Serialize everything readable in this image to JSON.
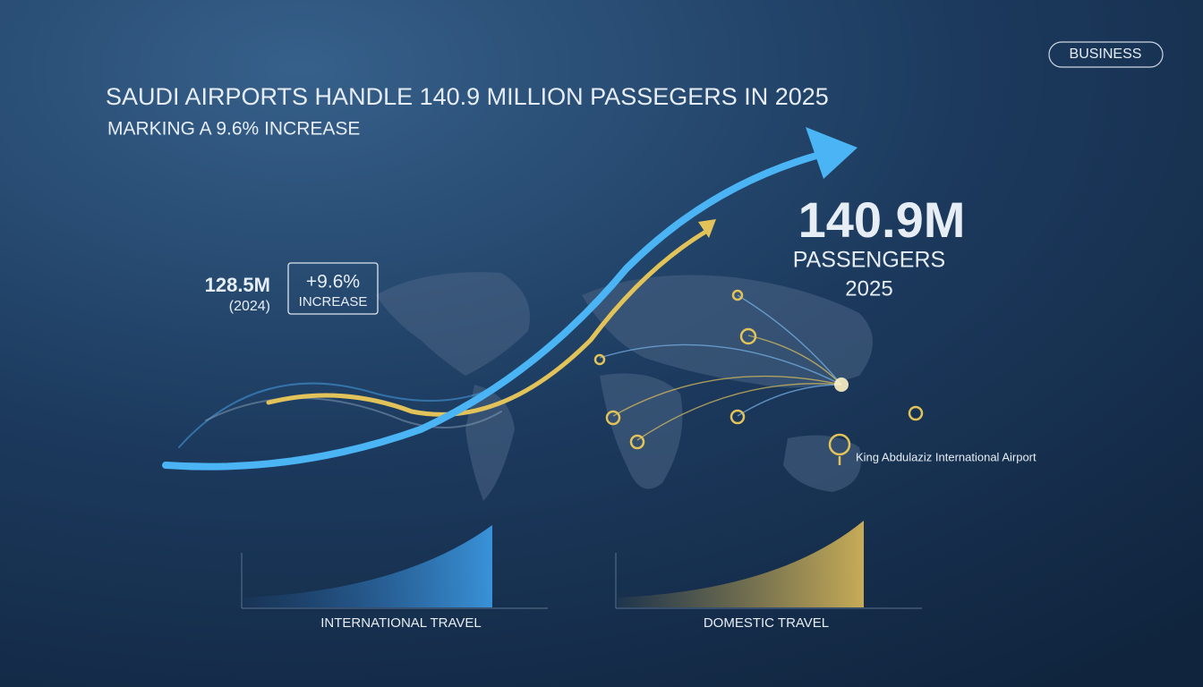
{
  "badge": "BUSINESS",
  "header": {
    "title": "SAUDI AIRPORTS HANDLE 140.9 MILLION PASSEGERS IN 2025",
    "subtitle": "MARKING A 9.6% INCREASE"
  },
  "previous": {
    "value": "128.5M",
    "year": "(2024)"
  },
  "change": {
    "value": "+9.6%",
    "label": "INCREASE"
  },
  "current": {
    "value": "140.9M",
    "label": "PASSENGERS",
    "year": "2025"
  },
  "airport_label": "King Abdulaziz International Airport",
  "panels": [
    {
      "label": "INTERNATIONAL TRAVEL"
    },
    {
      "label": "DOMESTIC TRAVEL"
    }
  ]
}
